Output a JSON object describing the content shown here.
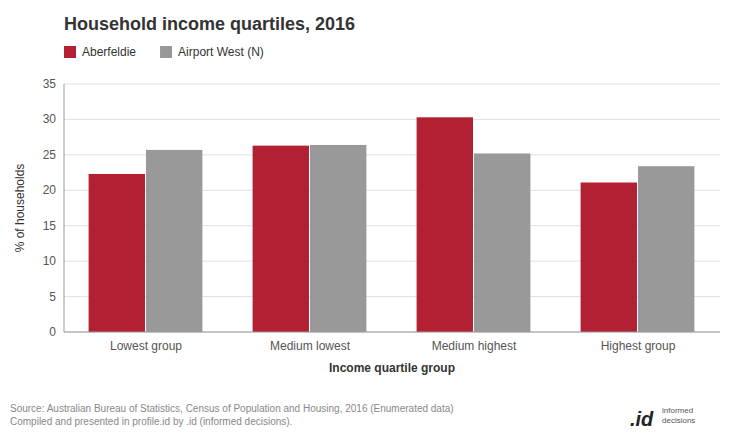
{
  "chart_data": {
    "type": "bar",
    "title": "Household income quartiles, 2016",
    "categories": [
      "Lowest group",
      "Medium lowest",
      "Medium highest",
      "Highest group"
    ],
    "series": [
      {
        "name": "Aberfeldie",
        "color": "#b22033",
        "values": [
          22.3,
          26.3,
          30.3,
          21.1
        ]
      },
      {
        "name": "Airport West (N)",
        "color": "#999999",
        "values": [
          25.7,
          26.4,
          25.2,
          23.4
        ]
      }
    ],
    "ylabel": "% of households",
    "xlabel": "Income quartile group",
    "ylim": [
      0,
      35
    ],
    "yticks": [
      0,
      5,
      10,
      15,
      20,
      25,
      30,
      35
    ],
    "grid": true,
    "legend": "top-left",
    "annotations": [
      "Source: Australian Bureau of Statistics, Census of Population and Housing, 2016 (Enumerated data)\nCompiled and presented in profile.id by .id (informed decisions).",
      ".id",
      "informed\ndecisions"
    ]
  }
}
